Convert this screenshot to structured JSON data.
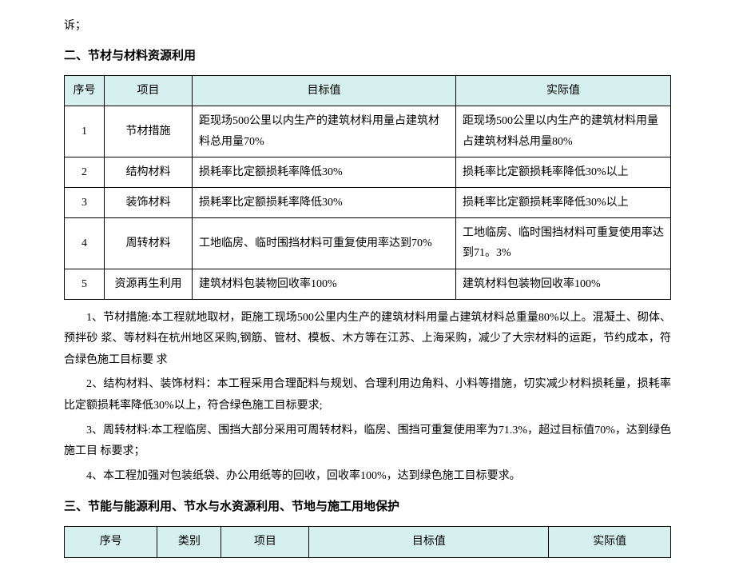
{
  "topLine": "诉；",
  "section2": {
    "heading": "二、节材与材料资源利用",
    "headers": {
      "seq": "序号",
      "proj": "项目",
      "target": "目标值",
      "actual": "实际值"
    },
    "rows": [
      {
        "seq": "1",
        "proj": "节材措施",
        "target": "距现场500公里以内生产的建筑材料用量占建筑材料总用量70%",
        "actual": "距现场500公里以内生产的建筑材料用量占建筑材料总用量80%"
      },
      {
        "seq": "2",
        "proj": "结构材料",
        "target": "损耗率比定额损耗率降低30%",
        "actual": "损耗率比定额损耗率降低30%以上"
      },
      {
        "seq": "3",
        "proj": "装饰材料",
        "target": "损耗率比定额损耗率降低30%",
        "actual": "损耗率比定额损耗率降低30%以上"
      },
      {
        "seq": "4",
        "proj": "周转材料",
        "target": "工地临房、临时围挡材料可重复使用率达到70%",
        "actual": "工地临房、临时围挡材料可重复使用率达到71。3%"
      },
      {
        "seq": "5",
        "proj": "资源再生利用",
        "target": "建筑材料包装物回收率100%",
        "actual": "建筑材料包装物回收率100%"
      }
    ],
    "paragraphs": [
      "1、节材措施:本工程就地取材，距施工现场500公里内生产的建筑材料用量占建筑材料总重量80%以上。混凝土、砌体、预拌砂 浆、等材料在杭州地区采购,钢筋、管材、模板、木方等在江苏、上海采购，减少了大宗材料的运距，节约成本，符合绿色施工目标要 求",
      "2、结构材料、装饰材料：本工程采用合理配料与规划、合理利用边角料、小料等措施，切实减少材料损耗量，损耗率比定额损耗率降低30%以上，符合绿色施工目标要求;",
      "3、周转材料:本工程临房、围挡大部分采用可周转材料，临房、围挡可重复使用率为71.3%，超过目标值70%，达到绿色施工目 标要求；",
      "4、本工程加强对包装纸袋、办公用纸等的回收，回收率100%，达到绿色施工目标要求。"
    ]
  },
  "section3": {
    "heading": "三、节能与能源利用、节水与水资源利用、节地与施工用地保护",
    "headers": {
      "seq": "序号",
      "cat": "类别",
      "proj": "项目",
      "target": "目标值",
      "actual": "实际值"
    }
  }
}
